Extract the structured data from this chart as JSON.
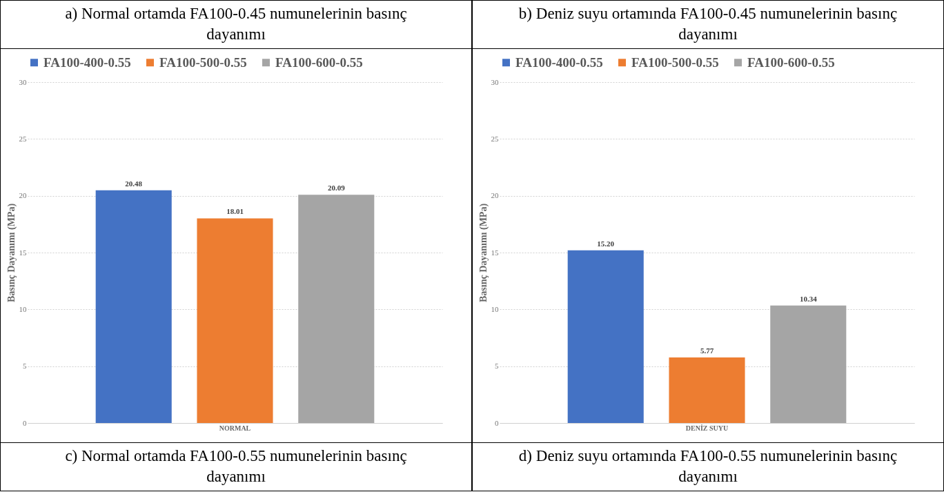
{
  "chart_data": [
    {
      "type": "bar",
      "title": "c) Normal ortamda FA100-0.55 numunelerinin basınç dayanımı",
      "annotations": [
        "a) Normal ortamda FA100-0.45 numunelerinin basınç dayanımı"
      ],
      "ylabel": "Basınç Dayanımı (MPa)",
      "categories": [
        "NORMAL"
      ],
      "series": [
        {
          "name": "FA100-400-0.55",
          "color": "#4472c4",
          "values": [
            20.48
          ],
          "value_labels": [
            "20.48"
          ]
        },
        {
          "name": "FA100-500-0.55",
          "color": "#ed7d31",
          "values": [
            18.01
          ],
          "value_labels": [
            "18.01"
          ]
        },
        {
          "name": "FA100-600-0.55",
          "color": "#a5a5a5",
          "values": [
            20.09
          ],
          "value_labels": [
            "20.09"
          ]
        }
      ],
      "ylim": [
        0,
        30
      ],
      "yticks": [
        0,
        5,
        10,
        15,
        20,
        25,
        30
      ],
      "grid": "y",
      "legend": "top"
    },
    {
      "type": "bar",
      "title": "d) Deniz suyu ortamında FA100-0.55 numunelerinin basınç dayanımı",
      "annotations": [
        "b) Deniz suyu ortamında FA100-0.45 numunelerinin basınç dayanımı"
      ],
      "ylabel": "Basınç Dayanımı (MPa)",
      "categories": [
        "DENİZ SUYU"
      ],
      "series": [
        {
          "name": "FA100-400-0.55",
          "color": "#4472c4",
          "values": [
            15.2
          ],
          "value_labels": [
            "15.20"
          ]
        },
        {
          "name": "FA100-500-0.55",
          "color": "#ed7d31",
          "values": [
            5.77
          ],
          "value_labels": [
            "5.77"
          ]
        },
        {
          "name": "FA100-600-0.55",
          "color": "#a5a5a5",
          "values": [
            10.34
          ],
          "value_labels": [
            "10.34"
          ]
        }
      ],
      "ylim": [
        0,
        30
      ],
      "yticks": [
        0,
        5,
        10,
        15,
        20,
        25,
        30
      ],
      "grid": "y",
      "legend": "top"
    }
  ]
}
